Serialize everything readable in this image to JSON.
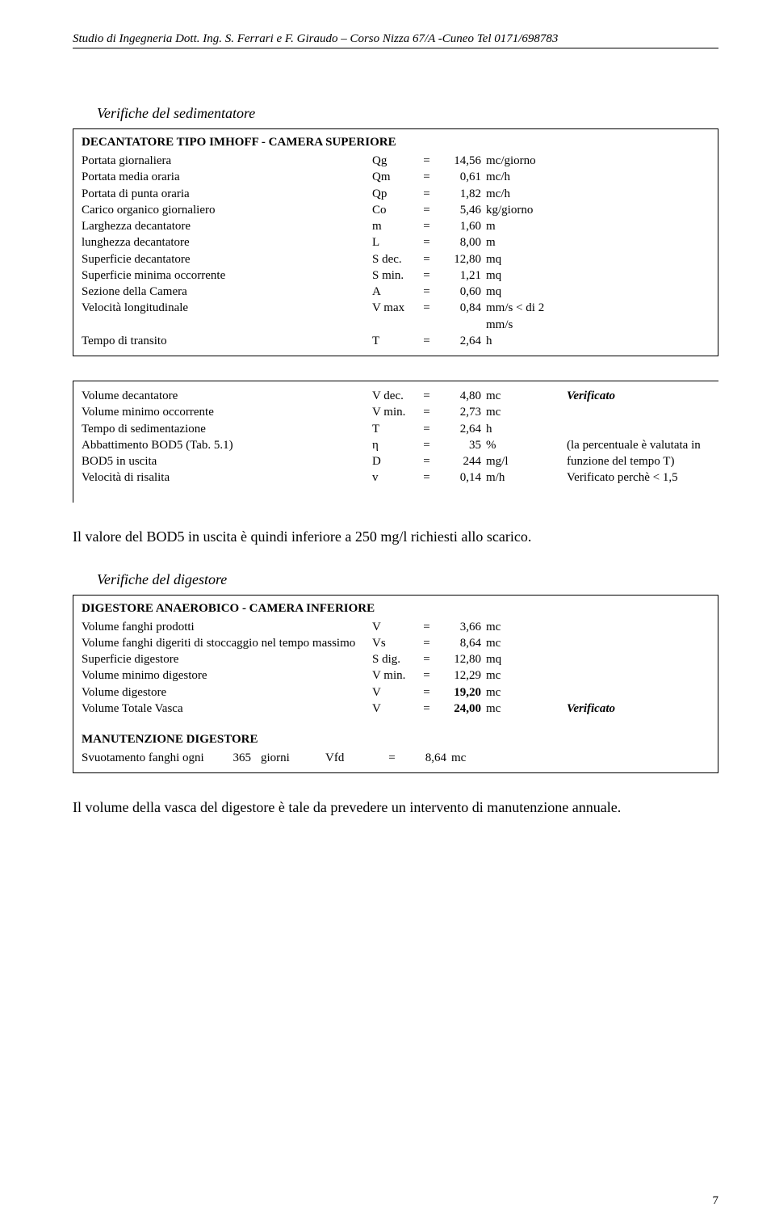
{
  "header": "Studio di Ingegneria Dott. Ing. S. Ferrari e F. Giraudo – Corso Nizza 67/A -Cuneo Tel 0171/698783",
  "sed": {
    "title": "Verifiche del sedimentatore",
    "box_title": "DECANTATORE TIPO IMHOFF - CAMERA SUPERIORE",
    "rows": [
      {
        "label": "Portata giornaliera",
        "sym": "Qg",
        "val": "14,56",
        "unit": "mc/giorno"
      },
      {
        "label": "Portata media oraria",
        "sym": "Qm",
        "val": "0,61",
        "unit": "mc/h"
      },
      {
        "label": "Portata di punta oraria",
        "sym": "Qp",
        "val": "1,82",
        "unit": "mc/h"
      },
      {
        "label": "Carico organico giornaliero",
        "sym": "Co",
        "val": "5,46",
        "unit": "kg/giorno"
      },
      {
        "label": "Larghezza decantatore",
        "sym": "m",
        "val": "1,60",
        "unit": "m"
      },
      {
        "label": "lunghezza decantatore",
        "sym": "L",
        "val": "8,00",
        "unit": "m"
      },
      {
        "label": "Superficie decantatore",
        "sym": "S dec.",
        "val": "12,80",
        "unit": "mq"
      },
      {
        "label": "Superficie minima occorrente",
        "sym": "S min.",
        "val": "1,21",
        "unit": "mq"
      },
      {
        "label": "Sezione della Camera",
        "sym": "A",
        "val": "0,60",
        "unit": "mq"
      },
      {
        "label": "Velocità longitudinale",
        "sym": "V max",
        "val": "0,84",
        "unit": "mm/s < di 2 mm/s"
      },
      {
        "label": "Tempo di transito",
        "sym": "T",
        "val": "2,64",
        "unit": "h"
      }
    ],
    "rows2": [
      {
        "label": "Volume decantatore",
        "sym": "V dec.",
        "val": "4,80",
        "unit": "mc",
        "note": "Verificato",
        "note_italic": true,
        "note_bold": true
      },
      {
        "label": "Volume minimo occorrente",
        "sym": "V min.",
        "val": "2,73",
        "unit": "mc"
      },
      {
        "label": "Tempo di sedimentazione",
        "sym": "T",
        "val": "2,64",
        "unit": "h"
      },
      {
        "label": "Abbattimento BOD5 (Tab. 5.1)",
        "sym": "η",
        "val": "35",
        "unit": "%",
        "note": "(la percentuale è valutata in"
      },
      {
        "label": "BOD5 in uscita",
        "sym": "D",
        "val": "244",
        "unit": "mg/l",
        "note": "funzione del tempo T)"
      },
      {
        "label": "Velocità di risalita",
        "sym": "v",
        "val": "0,14",
        "unit": "m/h",
        "note": "Verificato perchè < 1,5"
      }
    ]
  },
  "body1": "Il valore del BOD5 in uscita è quindi inferiore a 250 mg/l richiesti allo scarico.",
  "dig": {
    "title": "Verifiche del digestore",
    "box_title": "DIGESTORE ANAEROBICO - CAMERA INFERIORE",
    "rows": [
      {
        "label": "Volume fanghi prodotti",
        "sym": "V",
        "val": "3,66",
        "unit": "mc"
      },
      {
        "label": "Volume fanghi digeriti di stoccaggio nel tempo massimo",
        "sym": "Vs",
        "val": "8,64",
        "unit": "mc"
      },
      {
        "label": "Superficie digestore",
        "sym": "S dig.",
        "val": "12,80",
        "unit": "mq"
      },
      {
        "label": "Volume minimo digestore",
        "sym": "V min.",
        "val": "12,29",
        "unit": "mc"
      },
      {
        "label": "Volume digestore",
        "sym": "V",
        "val": "19,20",
        "unit": "mc",
        "val_bold": true
      },
      {
        "label": "Volume Totale Vasca",
        "sym": "V",
        "val": "24,00",
        "unit": "mc",
        "val_bold": true,
        "note": "Verificato",
        "note_italic": true,
        "note_bold": true
      }
    ],
    "maint_title": "MANUTENZIONE DIGESTORE",
    "maint": {
      "label": "Svuotamento fanghi ogni",
      "n": "365",
      "u": "giorni",
      "sym": "Vfd",
      "val": "8,64",
      "unit": "mc"
    }
  },
  "body2": "Il volume della vasca del digestore è tale da prevedere un intervento di manutenzione annuale.",
  "page_num": "7"
}
